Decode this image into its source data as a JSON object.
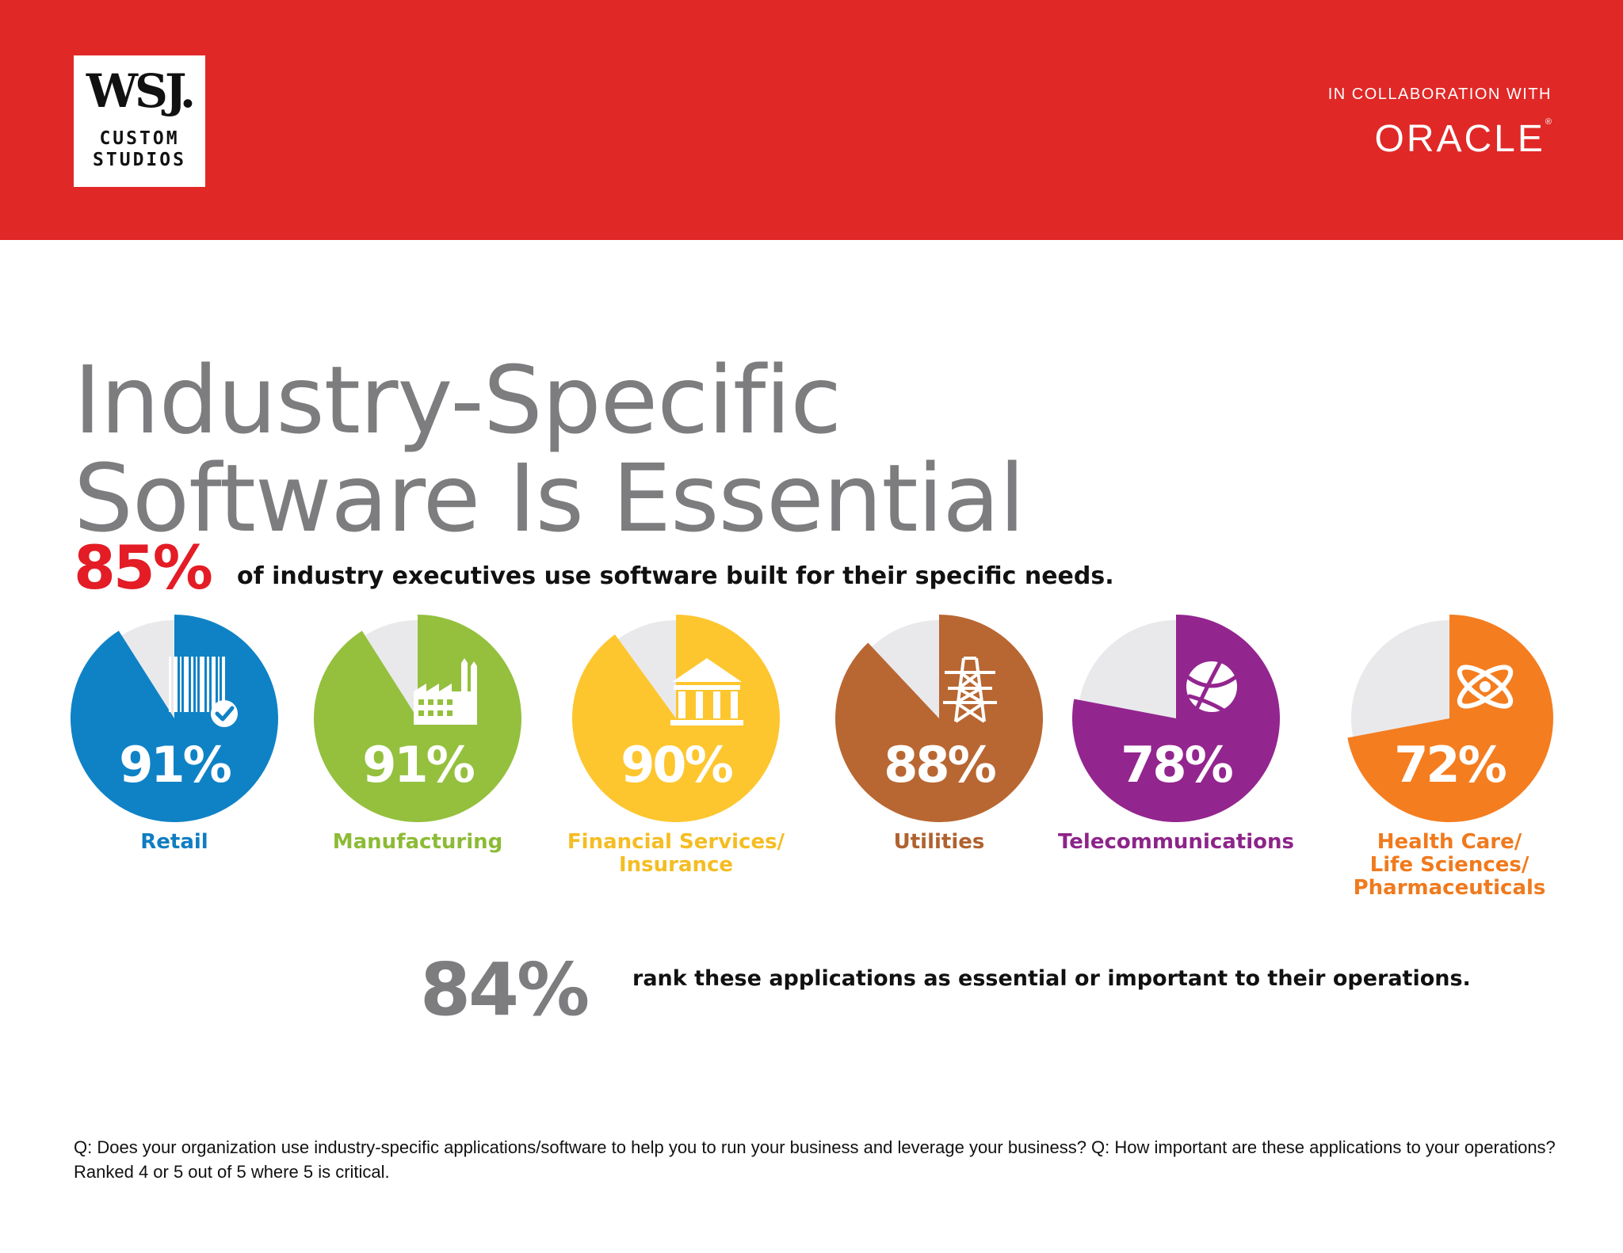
{
  "header": {
    "logo_mark": "WSJ.",
    "logo_line1": "CUSTOM",
    "logo_line2": "STUDIOS",
    "collab_text": "IN COLLABORATION WITH",
    "partner": "ORACLE",
    "partner_mark": "®"
  },
  "title_line1": "Industry-Specific",
  "title_line2": "Software Is Essential",
  "headline": {
    "value": "85%",
    "text": "of industry executives use software built for their specific needs."
  },
  "secondary": {
    "value": "84%",
    "text": "rank these applications as essential or important to their operations."
  },
  "footnote": "Q: Does your organization use industry-specific applications/software to help you to run your business and leverage your business? Q: How important are these applications to your operations? Ranked 4 or 5 out of 5 where 5 is critical.",
  "colors": {
    "banner": "#e02827",
    "remainder": "#e9e9ec",
    "title": "#7d7d7f"
  },
  "chart_data": {
    "type": "pie",
    "unit": "%",
    "categories": [
      "Retail",
      "Manufacturing",
      "Financial Services/ Insurance",
      "Utilities",
      "Telecommunications",
      "Health Care/ Life Sciences/ Pharmaceuticals"
    ],
    "values": [
      91,
      91,
      90,
      88,
      78,
      72
    ],
    "items": [
      {
        "label_lines": [
          "Retail"
        ],
        "value": 91,
        "pct_text": "91%",
        "color": "#0f82c6",
        "label_color": "#0f7dc2",
        "icon": "barcode-icon"
      },
      {
        "label_lines": [
          "Manufacturing"
        ],
        "value": 91,
        "pct_text": "91%",
        "color": "#94c03e",
        "label_color": "#8cbb35",
        "icon": "factory-icon"
      },
      {
        "label_lines": [
          "Financial Services/",
          "Insurance"
        ],
        "value": 90,
        "pct_text": "90%",
        "color": "#fdc62f",
        "label_color": "#f5bd22",
        "icon": "bank-icon"
      },
      {
        "label_lines": [
          "Utilities"
        ],
        "value": 88,
        "pct_text": "88%",
        "color": "#b86732",
        "label_color": "#b0622f",
        "icon": "power-tower-icon"
      },
      {
        "label_lines": [
          "Telecommunications"
        ],
        "value": 78,
        "pct_text": "78%",
        "color": "#93258f",
        "label_color": "#8d2489",
        "icon": "globe-icon"
      },
      {
        "label_lines": [
          "Health Care/",
          "Life Sciences/",
          "Pharmaceuticals"
        ],
        "value": 72,
        "pct_text": "72%",
        "color": "#f47d20",
        "label_color": "#f07a1d",
        "icon": "atom-icon"
      }
    ]
  }
}
